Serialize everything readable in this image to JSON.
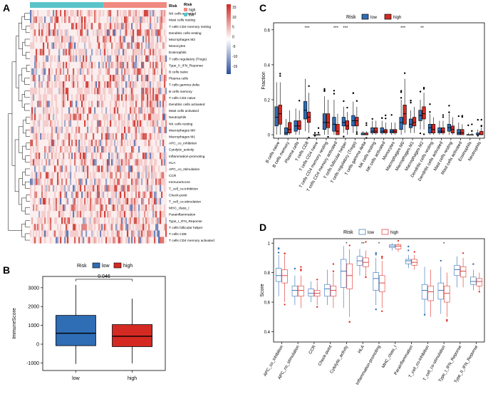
{
  "colors": {
    "low": "#2f6db5",
    "high": "#e0302a",
    "low_fill": "#2f6db5",
    "high_fill": "#d42a22",
    "heat_low": "#2c4f9c",
    "heat_mid": "#ffffff",
    "heat_high": "#cc2a22",
    "anno_high": "#f08a80",
    "anno_low": "#5bc4c9"
  },
  "panels": {
    "A": "A",
    "B": "B",
    "C": "C",
    "D": "D"
  },
  "chart_data": [
    {
      "panel": "A",
      "type": "heatmap",
      "annotation_label": "Risk",
      "legend": {
        "title": "Risk",
        "items": [
          "high",
          "low"
        ],
        "scale_ticks": [
          "15",
          "10",
          "5",
          "0",
          "-5",
          "-10",
          "-15"
        ]
      },
      "rows": [
        "NK cells activated",
        "Mast cells resting",
        "T cells CD4 memory resting",
        "Dendritic cells resting",
        "Macrophages M2",
        "Monocytes",
        "Eosinophils",
        "T cells regulatory (Tregs)",
        "Type_II_IFN_Reponse",
        "B cells naive",
        "Plasma cells",
        "T cells gamma delta",
        "B cells memory",
        "T cells CD4 naive",
        "Dendritic cells activated",
        "Mast cells activated",
        "Neutrophils",
        "NK cells resting",
        "Macrophages M0",
        "Macrophages M1",
        "APC_co_inhibition",
        "Cytolytic_activity",
        "Inflammation-promoting",
        "HLA",
        "APC_co_stimulation",
        "CCR",
        "ImmuneScore",
        "T_cell_co-inhibition",
        "Check-point",
        "T_cell_co-stimulation",
        "MHC_class_I",
        "Parainflammation",
        "Type_I_IFN_Reponse",
        "T cells follicular helper",
        "T cells CD8",
        "T cells CD4 memory activated"
      ]
    },
    {
      "panel": "B",
      "type": "box",
      "legend_title": "Risk",
      "groups": [
        "low",
        "high"
      ],
      "ylabel": "ImmuneScore",
      "ylim": [
        -1400,
        3600
      ],
      "yticks": [
        -1000,
        0,
        1000,
        2000,
        3000
      ],
      "pvalue": "0.046",
      "boxes": [
        {
          "name": "low",
          "whisker_low": -1050,
          "q1": -80,
          "median": 580,
          "q3": 1530,
          "whisker_high": 3150
        },
        {
          "name": "high",
          "whisker_low": -1020,
          "q1": -130,
          "median": 420,
          "q3": 1040,
          "whisker_high": 2420
        }
      ]
    },
    {
      "panel": "C",
      "type": "box",
      "legend_title": "Risk",
      "groups": [
        "low",
        "high"
      ],
      "ylabel": "Fraction",
      "ylim": [
        -0.02,
        0.64
      ],
      "yticks": [
        0.0,
        0.2,
        0.4,
        0.6
      ],
      "categories": [
        "B cells naive",
        "B cells memory",
        "Plasma cells",
        "T cells CD8",
        "T cells CD4 naive",
        "T cells CD4 memory resting",
        "T cells CD4 memory activated",
        "T cells follicular helper",
        "T cells regulatory (Tregs)",
        "T cells gamma delta",
        "NK cells resting",
        "NK cells activated",
        "Monocytes",
        "Macrophages M0",
        "Macrophages M1",
        "Macrophages M2",
        "Dendritic cells resting",
        "Dendritic cells activated",
        "Mast cells resting",
        "Mast cells activated",
        "Eosinophils",
        "Neutrophils"
      ],
      "significance": [
        "",
        "",
        "",
        "***",
        "",
        "",
        "***",
        "***",
        "",
        "",
        "",
        "",
        "",
        "***",
        "",
        "**",
        "",
        "",
        "",
        "",
        "",
        ""
      ],
      "low": [
        [
          0,
          0.05,
          0.1,
          0.16,
          0.3
        ],
        [
          0,
          0,
          0.01,
          0.04,
          0.09
        ],
        [
          0,
          0.02,
          0.05,
          0.08,
          0.15
        ],
        [
          0.02,
          0.09,
          0.14,
          0.19,
          0.32
        ],
        [
          0,
          0,
          0,
          0,
          0
        ],
        [
          0,
          0.03,
          0.07,
          0.12,
          0.22
        ],
        [
          0,
          0.02,
          0.06,
          0.1,
          0.2
        ],
        [
          0.01,
          0.05,
          0.07,
          0.1,
          0.16
        ],
        [
          0.01,
          0.05,
          0.08,
          0.11,
          0.19
        ],
        [
          0,
          0,
          0,
          0.01,
          0.02
        ],
        [
          0,
          0.01,
          0.02,
          0.04,
          0.08
        ],
        [
          0,
          0.01,
          0.02,
          0.04,
          0.08
        ],
        [
          0,
          0.01,
          0.02,
          0.03,
          0.07
        ],
        [
          0,
          0.03,
          0.07,
          0.1,
          0.2
        ],
        [
          0.01,
          0.04,
          0.06,
          0.09,
          0.14
        ],
        [
          0.03,
          0.08,
          0.11,
          0.14,
          0.2
        ],
        [
          0,
          0.01,
          0.04,
          0.06,
          0.12
        ],
        [
          0,
          0.01,
          0.02,
          0.04,
          0.08
        ],
        [
          0,
          0.02,
          0.04,
          0.06,
          0.12
        ],
        [
          0,
          0,
          0.01,
          0.03,
          0.07
        ],
        [
          0,
          0,
          0,
          0,
          0.01
        ],
        [
          0,
          0,
          0,
          0.01,
          0.03
        ]
      ],
      "high": [
        [
          0,
          0.06,
          0.12,
          0.17,
          0.3
        ],
        [
          0,
          0.01,
          0.03,
          0.07,
          0.14
        ],
        [
          0,
          0.03,
          0.05,
          0.08,
          0.14
        ],
        [
          0.01,
          0.07,
          0.1,
          0.13,
          0.24
        ],
        [
          0,
          0,
          0,
          0,
          0
        ],
        [
          0,
          0.04,
          0.07,
          0.12,
          0.2
        ],
        [
          0,
          0,
          0.02,
          0.06,
          0.12
        ],
        [
          0,
          0.03,
          0.05,
          0.08,
          0.13
        ],
        [
          0.02,
          0.05,
          0.08,
          0.1,
          0.16
        ],
        [
          0,
          0,
          0,
          0.01,
          0.02
        ],
        [
          0,
          0.01,
          0.02,
          0.04,
          0.08
        ],
        [
          0,
          0.01,
          0.02,
          0.03,
          0.07
        ],
        [
          0,
          0.01,
          0.02,
          0.03,
          0.07
        ],
        [
          0.01,
          0.06,
          0.12,
          0.17,
          0.32
        ],
        [
          0.01,
          0.05,
          0.07,
          0.1,
          0.16
        ],
        [
          0.03,
          0.09,
          0.12,
          0.16,
          0.24
        ],
        [
          0,
          0.01,
          0.03,
          0.06,
          0.1
        ],
        [
          0,
          0.01,
          0.02,
          0.04,
          0.08
        ],
        [
          0,
          0.01,
          0.03,
          0.05,
          0.1
        ],
        [
          0,
          0,
          0.01,
          0.03,
          0.06
        ],
        [
          0,
          0,
          0,
          0,
          0.01
        ],
        [
          0,
          0,
          0,
          0.02,
          0.04
        ]
      ]
    },
    {
      "panel": "D",
      "type": "box",
      "legend_title": "Risk",
      "groups": [
        "low",
        "high"
      ],
      "ylabel": "Score",
      "ylim": [
        0.33,
        1.03
      ],
      "yticks": [
        0.4,
        0.6,
        0.8,
        1.0
      ],
      "categories": [
        "APC_co_inhibition",
        "APC_co_stimulation",
        "CCR",
        "Check-point",
        "Cytolytic_activity",
        "HLA",
        "Inflammation-promoting",
        "MHC_class_I",
        "Parainflammation",
        "T_cell_co-inhibition",
        "T_cell_co-stimulation",
        "Type_I_IFN_Reponse",
        "Type_II_IFN_Reponse"
      ],
      "significance": [
        "",
        "",
        "",
        "",
        "*",
        "**",
        "*",
        "",
        "",
        "",
        "*",
        "",
        ""
      ],
      "low": [
        [
          0.64,
          0.74,
          0.78,
          0.83,
          0.92
        ],
        [
          0.58,
          0.64,
          0.68,
          0.71,
          0.78
        ],
        [
          0.6,
          0.64,
          0.66,
          0.69,
          0.74
        ],
        [
          0.58,
          0.64,
          0.69,
          0.72,
          0.82
        ],
        [
          0.56,
          0.7,
          0.81,
          0.89,
          0.98
        ],
        [
          0.78,
          0.85,
          0.88,
          0.91,
          0.96
        ],
        [
          0.58,
          0.68,
          0.76,
          0.8,
          0.9
        ],
        [
          0.95,
          0.97,
          0.98,
          0.99,
          1.0
        ],
        [
          0.83,
          0.86,
          0.88,
          0.89,
          0.92
        ],
        [
          0.52,
          0.62,
          0.68,
          0.72,
          0.84
        ],
        [
          0.52,
          0.62,
          0.68,
          0.73,
          0.84
        ],
        [
          0.7,
          0.78,
          0.82,
          0.85,
          0.91
        ],
        [
          0.68,
          0.72,
          0.74,
          0.77,
          0.82
        ]
      ],
      "high": [
        [
          0.6,
          0.73,
          0.78,
          0.82,
          0.92
        ],
        [
          0.56,
          0.64,
          0.68,
          0.71,
          0.78
        ],
        [
          0.58,
          0.64,
          0.66,
          0.68,
          0.74
        ],
        [
          0.56,
          0.64,
          0.68,
          0.71,
          0.8
        ],
        [
          0.5,
          0.69,
          0.78,
          0.86,
          0.96
        ],
        [
          0.77,
          0.84,
          0.87,
          0.9,
          0.95
        ],
        [
          0.56,
          0.67,
          0.73,
          0.78,
          0.88
        ],
        [
          0.94,
          0.96,
          0.98,
          0.99,
          1.0
        ],
        [
          0.82,
          0.85,
          0.87,
          0.89,
          0.92
        ],
        [
          0.5,
          0.61,
          0.67,
          0.71,
          0.82
        ],
        [
          0.5,
          0.6,
          0.66,
          0.71,
          0.8
        ],
        [
          0.7,
          0.77,
          0.81,
          0.84,
          0.9
        ],
        [
          0.68,
          0.71,
          0.74,
          0.76,
          0.8
        ]
      ]
    }
  ]
}
